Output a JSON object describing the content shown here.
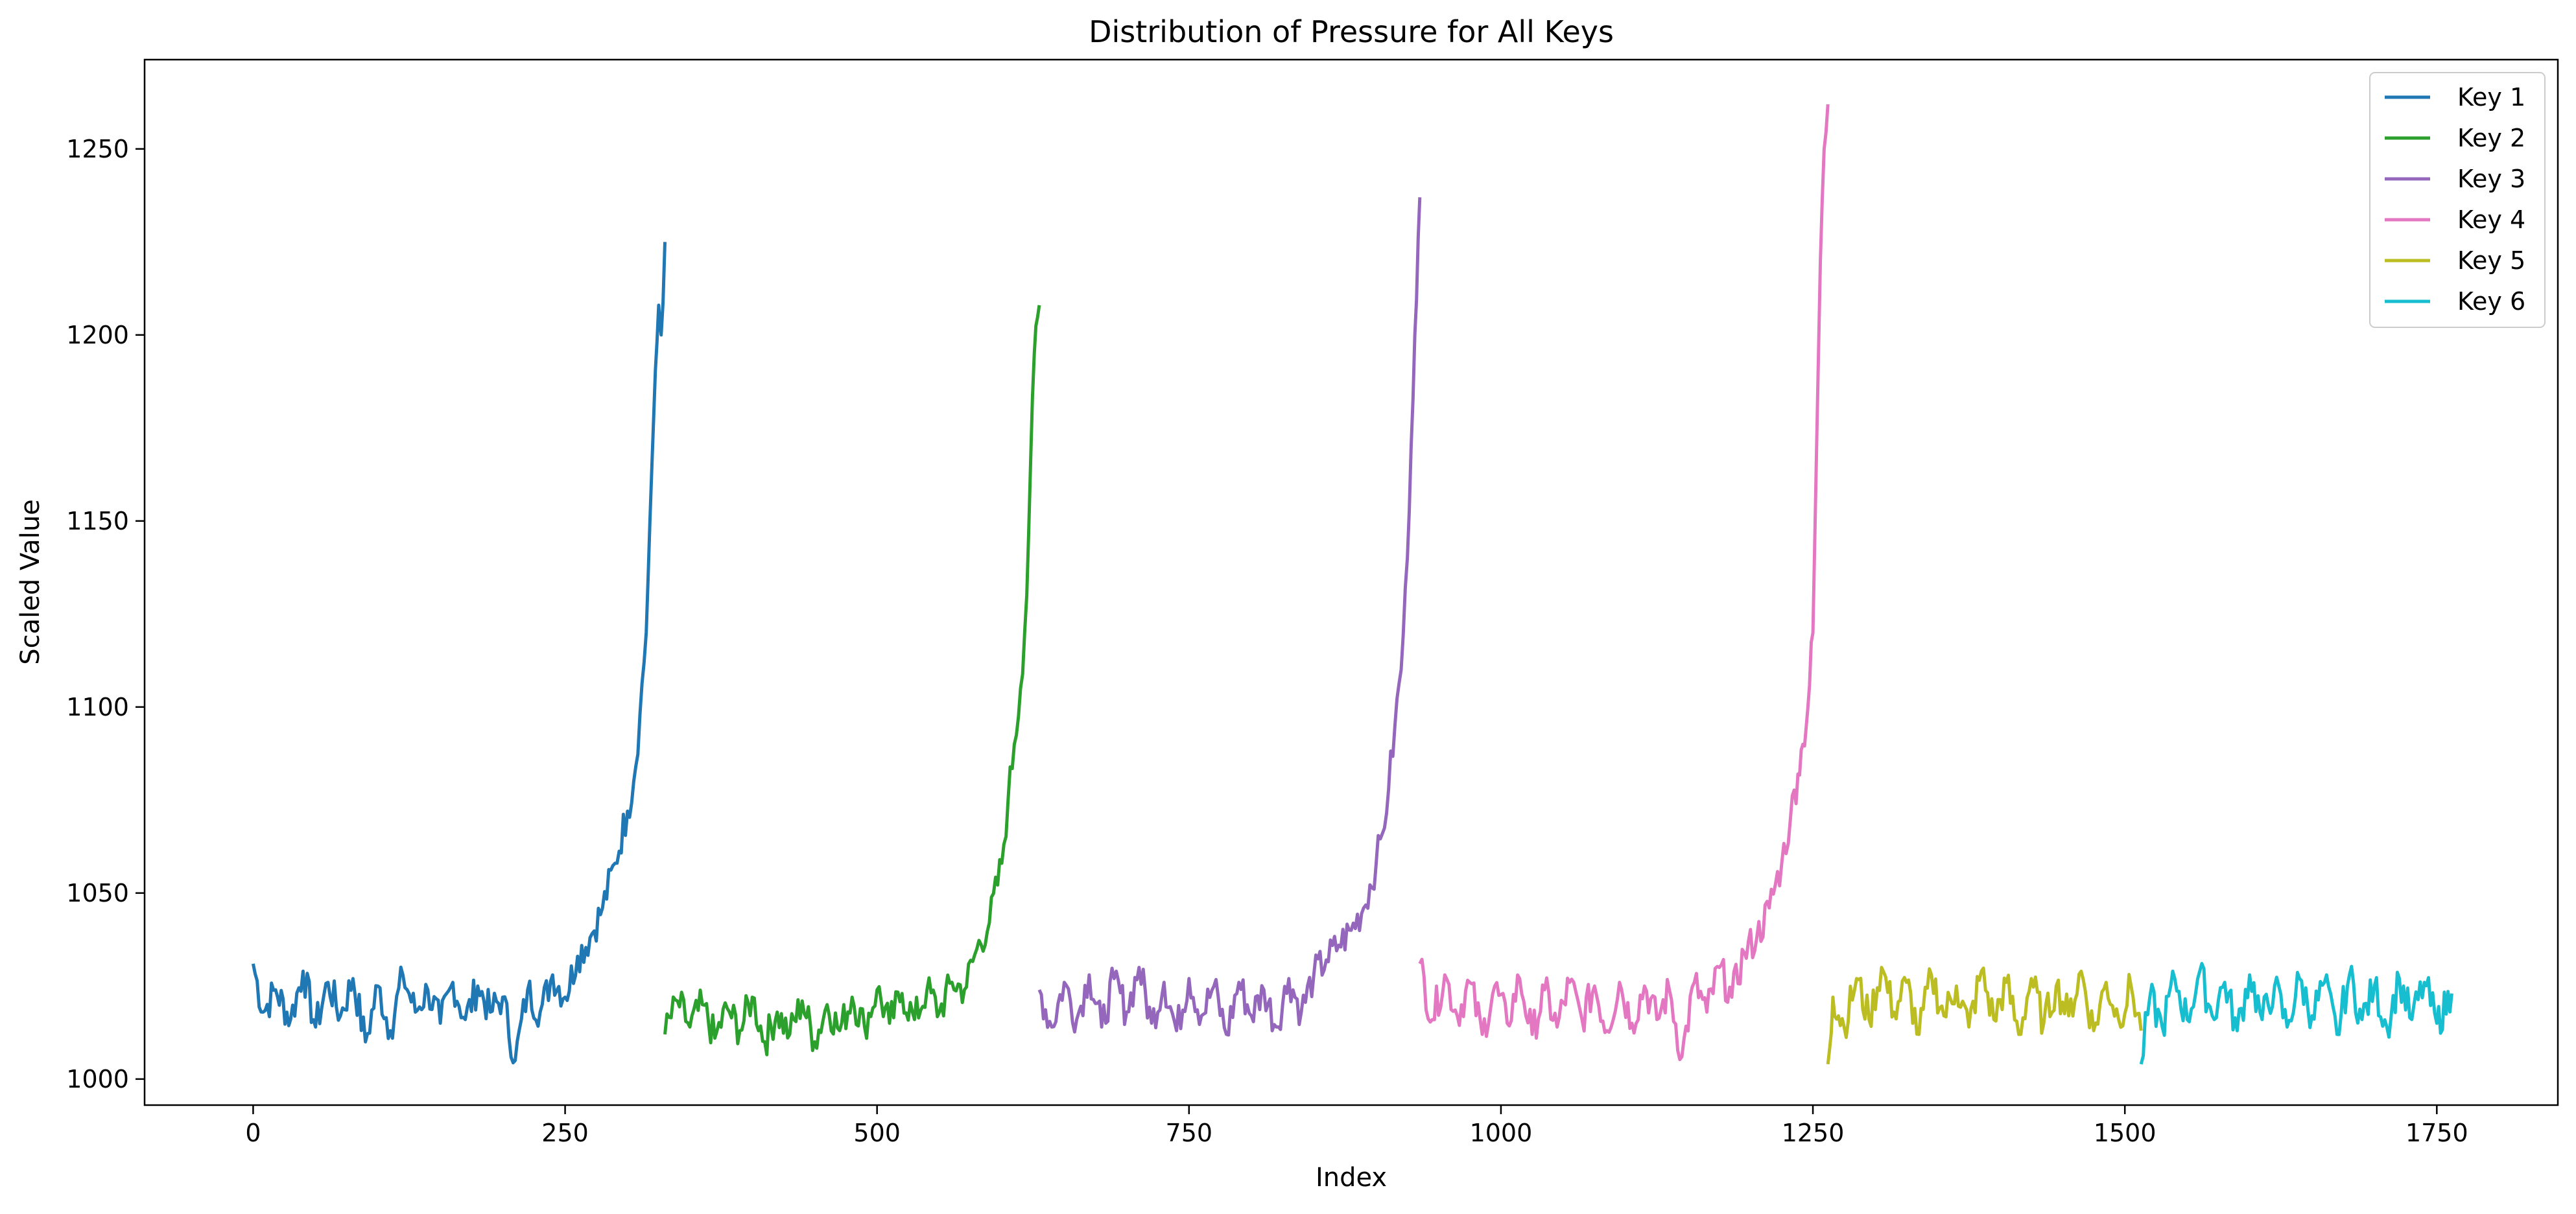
{
  "chart_data": {
    "type": "line",
    "title": "Distribution of Pressure for All Keys",
    "xlabel": "Index",
    "ylabel": "Scaled Value",
    "xlim": [
      -87,
      1847
    ],
    "ylim": [
      993,
      1274
    ],
    "xticks": [
      0,
      250,
      500,
      750,
      1000,
      1250,
      1500,
      1750
    ],
    "yticks": [
      1000,
      1050,
      1100,
      1150,
      1200,
      1250
    ],
    "grid": false,
    "legend_position": "top-right",
    "series": [
      {
        "name": "Key 1",
        "color": "#1f77b4",
        "x_start": 0,
        "x_end": 330,
        "points": [
          [
            0,
            1031
          ],
          [
            8,
            1018
          ],
          [
            18,
            1024
          ],
          [
            30,
            1016
          ],
          [
            40,
            1029
          ],
          [
            50,
            1014
          ],
          [
            60,
            1026
          ],
          [
            70,
            1017
          ],
          [
            80,
            1027
          ],
          [
            90,
            1010
          ],
          [
            100,
            1025
          ],
          [
            110,
            1013
          ],
          [
            120,
            1028
          ],
          [
            130,
            1018
          ],
          [
            140,
            1024
          ],
          [
            150,
            1015
          ],
          [
            160,
            1026
          ],
          [
            170,
            1016
          ],
          [
            180,
            1025
          ],
          [
            190,
            1018
          ],
          [
            200,
            1022
          ],
          [
            210,
            1005
          ],
          [
            220,
            1024
          ],
          [
            230,
            1018
          ],
          [
            240,
            1028
          ],
          [
            250,
            1022
          ],
          [
            260,
            1033
          ],
          [
            270,
            1038
          ],
          [
            280,
            1046
          ],
          [
            290,
            1058
          ],
          [
            300,
            1072
          ],
          [
            305,
            1080
          ],
          [
            310,
            1098
          ],
          [
            315,
            1120
          ],
          [
            318,
            1150
          ],
          [
            321,
            1178
          ],
          [
            325,
            1208
          ],
          [
            327,
            1200
          ],
          [
            330,
            1225
          ]
        ]
      },
      {
        "name": "Key 2",
        "color": "#2ca02c",
        "x_start": 330,
        "x_end": 630,
        "points": [
          [
            330,
            1012
          ],
          [
            340,
            1021
          ],
          [
            350,
            1014
          ],
          [
            360,
            1020
          ],
          [
            370,
            1011
          ],
          [
            380,
            1019
          ],
          [
            390,
            1013
          ],
          [
            400,
            1022
          ],
          [
            410,
            1010
          ],
          [
            420,
            1018
          ],
          [
            430,
            1012
          ],
          [
            440,
            1021
          ],
          [
            450,
            1010
          ],
          [
            460,
            1020
          ],
          [
            470,
            1013
          ],
          [
            480,
            1022
          ],
          [
            490,
            1014
          ],
          [
            500,
            1024
          ],
          [
            510,
            1015
          ],
          [
            520,
            1023
          ],
          [
            530,
            1016
          ],
          [
            540,
            1024
          ],
          [
            550,
            1018
          ],
          [
            560,
            1026
          ],
          [
            570,
            1024
          ],
          [
            580,
            1035
          ],
          [
            590,
            1042
          ],
          [
            600,
            1058
          ],
          [
            605,
            1075
          ],
          [
            610,
            1090
          ],
          [
            615,
            1105
          ],
          [
            620,
            1130
          ],
          [
            623,
            1165
          ],
          [
            626,
            1195
          ],
          [
            630,
            1208
          ]
        ]
      },
      {
        "name": "Key 3",
        "color": "#9467bd",
        "x_start": 630,
        "x_end": 935,
        "points": [
          [
            630,
            1024
          ],
          [
            640,
            1014
          ],
          [
            650,
            1026
          ],
          [
            660,
            1016
          ],
          [
            670,
            1028
          ],
          [
            680,
            1014
          ],
          [
            690,
            1027
          ],
          [
            700,
            1018
          ],
          [
            710,
            1030
          ],
          [
            720,
            1015
          ],
          [
            730,
            1026
          ],
          [
            740,
            1013
          ],
          [
            750,
            1027
          ],
          [
            760,
            1017
          ],
          [
            770,
            1025
          ],
          [
            780,
            1012
          ],
          [
            790,
            1026
          ],
          [
            800,
            1017
          ],
          [
            810,
            1024
          ],
          [
            820,
            1014
          ],
          [
            830,
            1027
          ],
          [
            840,
            1018
          ],
          [
            850,
            1028
          ],
          [
            860,
            1032
          ],
          [
            870,
            1036
          ],
          [
            880,
            1040
          ],
          [
            890,
            1046
          ],
          [
            900,
            1058
          ],
          [
            905,
            1066
          ],
          [
            910,
            1078
          ],
          [
            915,
            1095
          ],
          [
            920,
            1110
          ],
          [
            925,
            1140
          ],
          [
            928,
            1170
          ],
          [
            931,
            1200
          ],
          [
            935,
            1237
          ]
        ]
      },
      {
        "name": "Key 4",
        "color": "#e377c2",
        "x_start": 935,
        "x_end": 1262,
        "points": [
          [
            935,
            1031
          ],
          [
            945,
            1016
          ],
          [
            955,
            1028
          ],
          [
            965,
            1017
          ],
          [
            975,
            1026
          ],
          [
            985,
            1012
          ],
          [
            995,
            1025
          ],
          [
            1005,
            1015
          ],
          [
            1015,
            1027
          ],
          [
            1025,
            1012
          ],
          [
            1035,
            1024
          ],
          [
            1045,
            1014
          ],
          [
            1055,
            1026
          ],
          [
            1065,
            1016
          ],
          [
            1075,
            1025
          ],
          [
            1085,
            1013
          ],
          [
            1095,
            1026
          ],
          [
            1105,
            1015
          ],
          [
            1115,
            1025
          ],
          [
            1125,
            1016
          ],
          [
            1135,
            1024
          ],
          [
            1145,
            1006
          ],
          [
            1155,
            1026
          ],
          [
            1165,
            1018
          ],
          [
            1175,
            1030
          ],
          [
            1185,
            1022
          ],
          [
            1195,
            1034
          ],
          [
            1205,
            1038
          ],
          [
            1215,
            1046
          ],
          [
            1225,
            1058
          ],
          [
            1232,
            1070
          ],
          [
            1238,
            1082
          ],
          [
            1242,
            1090
          ],
          [
            1246,
            1100
          ],
          [
            1250,
            1120
          ],
          [
            1253,
            1170
          ],
          [
            1256,
            1220
          ],
          [
            1259,
            1250
          ],
          [
            1262,
            1262
          ]
        ]
      },
      {
        "name": "Key 5",
        "color": "#bcbd22",
        "x_start": 1262,
        "x_end": 1513,
        "points": [
          [
            1262,
            1004
          ],
          [
            1266,
            1022
          ],
          [
            1275,
            1014
          ],
          [
            1285,
            1027
          ],
          [
            1295,
            1016
          ],
          [
            1305,
            1030
          ],
          [
            1315,
            1018
          ],
          [
            1325,
            1026
          ],
          [
            1335,
            1012
          ],
          [
            1345,
            1028
          ],
          [
            1355,
            1017
          ],
          [
            1365,
            1025
          ],
          [
            1375,
            1014
          ],
          [
            1385,
            1029
          ],
          [
            1395,
            1016
          ],
          [
            1405,
            1026
          ],
          [
            1415,
            1012
          ],
          [
            1425,
            1027
          ],
          [
            1435,
            1015
          ],
          [
            1445,
            1025
          ],
          [
            1455,
            1017
          ],
          [
            1465,
            1029
          ],
          [
            1475,
            1013
          ],
          [
            1485,
            1026
          ],
          [
            1495,
            1016
          ],
          [
            1505,
            1025
          ],
          [
            1513,
            1013
          ]
        ]
      },
      {
        "name": "Key 6",
        "color": "#17becf",
        "x_start": 1513,
        "x_end": 1762,
        "points": [
          [
            1513,
            1004
          ],
          [
            1520,
            1022
          ],
          [
            1530,
            1014
          ],
          [
            1540,
            1027
          ],
          [
            1550,
            1016
          ],
          [
            1560,
            1029
          ],
          [
            1570,
            1017
          ],
          [
            1580,
            1026
          ],
          [
            1590,
            1013
          ],
          [
            1600,
            1028
          ],
          [
            1610,
            1016
          ],
          [
            1620,
            1025
          ],
          [
            1630,
            1014
          ],
          [
            1640,
            1027
          ],
          [
            1650,
            1017
          ],
          [
            1660,
            1026
          ],
          [
            1670,
            1012
          ],
          [
            1680,
            1028
          ],
          [
            1690,
            1016
          ],
          [
            1700,
            1025
          ],
          [
            1710,
            1014
          ],
          [
            1720,
            1027
          ],
          [
            1730,
            1016
          ],
          [
            1740,
            1026
          ],
          [
            1750,
            1015
          ],
          [
            1762,
            1023
          ]
        ]
      }
    ]
  }
}
